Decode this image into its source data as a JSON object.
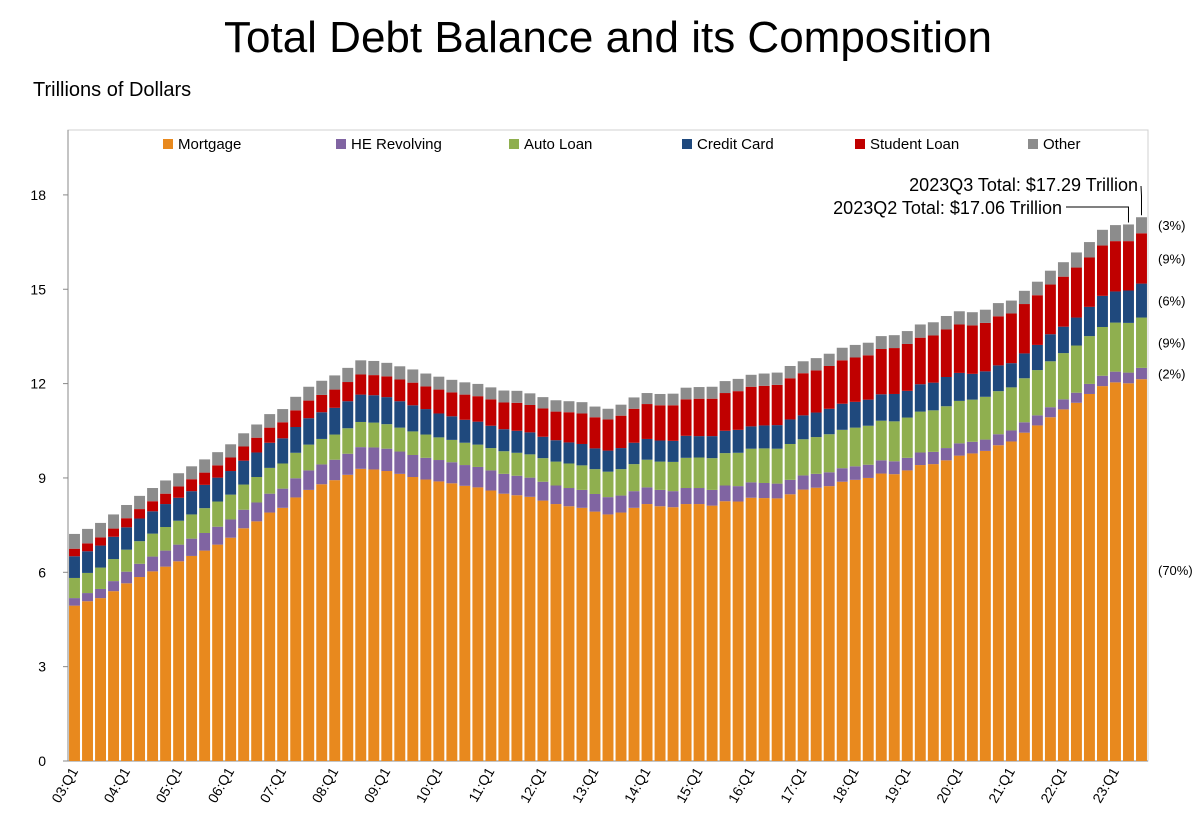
{
  "chart_data": {
    "type": "stacked_bar",
    "title": "Total Debt Balance and its Composition",
    "y_label": "Trillions of Dollars",
    "ylim": [
      0,
      20
    ],
    "yticks": [
      0,
      3,
      6,
      9,
      12,
      15,
      18
    ],
    "annotations": [
      "2023Q3 Total: $17.29 Trillion",
      "2023Q2 Total: $17.06 Trillion"
    ],
    "categories": [
      "03:Q1",
      null,
      null,
      null,
      "04:Q1",
      null,
      null,
      null,
      "05:Q1",
      null,
      null,
      null,
      "06:Q1",
      null,
      null,
      null,
      "07:Q1",
      null,
      null,
      null,
      "08:Q1",
      null,
      null,
      null,
      "09:Q1",
      null,
      null,
      null,
      "10:Q1",
      null,
      null,
      null,
      "11:Q1",
      null,
      null,
      null,
      "12:Q1",
      null,
      null,
      null,
      "13:Q1",
      null,
      null,
      null,
      "14:Q1",
      null,
      null,
      null,
      "15:Q1",
      null,
      null,
      null,
      "16:Q1",
      null,
      null,
      null,
      "17:Q1",
      null,
      null,
      null,
      "18:Q1",
      null,
      null,
      null,
      "19:Q1",
      null,
      null,
      null,
      "20:Q1",
      null,
      null,
      null,
      "21:Q1",
      null,
      null,
      null,
      "22:Q1",
      null,
      null,
      null,
      "23:Q1",
      null,
      null
    ],
    "series": [
      {
        "name": "Mortgage",
        "color": "#e8891e",
        "share_label": "(70%)",
        "values": [
          4.94,
          5.08,
          5.18,
          5.4,
          5.65,
          5.85,
          6.03,
          6.18,
          6.35,
          6.52,
          6.69,
          6.88,
          7.1,
          7.4,
          7.62,
          7.9,
          8.05,
          8.38,
          8.62,
          8.8,
          8.93,
          9.1,
          9.29,
          9.27,
          9.22,
          9.13,
          9.03,
          8.95,
          8.89,
          8.83,
          8.75,
          8.7,
          8.6,
          8.5,
          8.45,
          8.4,
          8.28,
          8.17,
          8.1,
          8.05,
          7.93,
          7.84,
          7.9,
          8.05,
          8.17,
          8.1,
          8.07,
          8.17,
          8.17,
          8.12,
          8.26,
          8.25,
          8.37,
          8.36,
          8.35,
          8.48,
          8.63,
          8.69,
          8.74,
          8.88,
          8.94,
          9.0,
          9.14,
          9.12,
          9.24,
          9.41,
          9.44,
          9.56,
          9.71,
          9.78,
          9.86,
          10.04,
          10.16,
          10.44,
          10.67,
          10.93,
          11.18,
          11.39,
          11.67,
          11.92,
          12.04,
          12.01,
          12.14
        ]
      },
      {
        "name": "HE Revolving",
        "color": "#8064a2",
        "share_label": "(2%)",
        "values": [
          0.24,
          0.26,
          0.29,
          0.32,
          0.37,
          0.42,
          0.47,
          0.51,
          0.53,
          0.55,
          0.56,
          0.57,
          0.58,
          0.59,
          0.6,
          0.6,
          0.61,
          0.61,
          0.62,
          0.63,
          0.65,
          0.67,
          0.69,
          0.7,
          0.71,
          0.71,
          0.7,
          0.69,
          0.68,
          0.67,
          0.66,
          0.65,
          0.64,
          0.63,
          0.62,
          0.61,
          0.6,
          0.59,
          0.58,
          0.57,
          0.56,
          0.55,
          0.54,
          0.53,
          0.53,
          0.52,
          0.51,
          0.51,
          0.51,
          0.5,
          0.5,
          0.49,
          0.49,
          0.48,
          0.47,
          0.46,
          0.45,
          0.44,
          0.44,
          0.43,
          0.43,
          0.42,
          0.42,
          0.41,
          0.4,
          0.4,
          0.39,
          0.39,
          0.39,
          0.37,
          0.36,
          0.35,
          0.35,
          0.33,
          0.32,
          0.32,
          0.32,
          0.32,
          0.32,
          0.33,
          0.34,
          0.34,
          0.36
        ]
      },
      {
        "name": "Auto Loan",
        "color": "#8faf4f",
        "share_label": "(9%)",
        "values": [
          0.64,
          0.64,
          0.68,
          0.7,
          0.7,
          0.72,
          0.73,
          0.75,
          0.76,
          0.77,
          0.79,
          0.8,
          0.79,
          0.8,
          0.81,
          0.82,
          0.8,
          0.81,
          0.82,
          0.81,
          0.8,
          0.81,
          0.8,
          0.79,
          0.78,
          0.76,
          0.75,
          0.74,
          0.72,
          0.71,
          0.71,
          0.71,
          0.71,
          0.72,
          0.73,
          0.74,
          0.75,
          0.76,
          0.78,
          0.78,
          0.79,
          0.81,
          0.84,
          0.86,
          0.88,
          0.9,
          0.93,
          0.96,
          0.97,
          1.01,
          1.03,
          1.06,
          1.07,
          1.1,
          1.11,
          1.14,
          1.15,
          1.17,
          1.21,
          1.22,
          1.23,
          1.24,
          1.26,
          1.27,
          1.28,
          1.3,
          1.32,
          1.33,
          1.35,
          1.34,
          1.36,
          1.37,
          1.37,
          1.4,
          1.44,
          1.46,
          1.47,
          1.5,
          1.52,
          1.55,
          1.56,
          1.58,
          1.6
        ]
      },
      {
        "name": "Credit Card",
        "color": "#1f497d",
        "share_label": "(6%)",
        "values": [
          0.69,
          0.69,
          0.7,
          0.71,
          0.71,
          0.72,
          0.71,
          0.73,
          0.73,
          0.74,
          0.74,
          0.76,
          0.75,
          0.76,
          0.78,
          0.8,
          0.8,
          0.82,
          0.84,
          0.85,
          0.85,
          0.86,
          0.87,
          0.87,
          0.86,
          0.84,
          0.83,
          0.81,
          0.76,
          0.75,
          0.73,
          0.73,
          0.71,
          0.7,
          0.7,
          0.7,
          0.68,
          0.68,
          0.67,
          0.68,
          0.66,
          0.67,
          0.67,
          0.68,
          0.66,
          0.67,
          0.67,
          0.7,
          0.68,
          0.7,
          0.71,
          0.73,
          0.71,
          0.73,
          0.75,
          0.78,
          0.76,
          0.78,
          0.81,
          0.83,
          0.82,
          0.83,
          0.84,
          0.87,
          0.85,
          0.87,
          0.88,
          0.93,
          0.89,
          0.82,
          0.81,
          0.82,
          0.77,
          0.79,
          0.8,
          0.86,
          0.84,
          0.89,
          0.93,
          0.99,
          0.99,
          1.03,
          1.08
        ]
      },
      {
        "name": "Student Loan",
        "color": "#c00000",
        "share_label": "(9%)",
        "values": [
          0.24,
          0.25,
          0.26,
          0.26,
          0.29,
          0.3,
          0.32,
          0.33,
          0.36,
          0.38,
          0.39,
          0.39,
          0.43,
          0.45,
          0.47,
          0.48,
          0.51,
          0.53,
          0.56,
          0.55,
          0.58,
          0.61,
          0.64,
          0.64,
          0.66,
          0.69,
          0.72,
          0.72,
          0.76,
          0.76,
          0.8,
          0.81,
          0.84,
          0.85,
          0.89,
          0.87,
          0.9,
          0.91,
          0.96,
          0.97,
          0.99,
          0.99,
          1.03,
          1.08,
          1.11,
          1.12,
          1.13,
          1.16,
          1.19,
          1.19,
          1.2,
          1.23,
          1.26,
          1.26,
          1.28,
          1.31,
          1.34,
          1.34,
          1.36,
          1.38,
          1.41,
          1.41,
          1.44,
          1.46,
          1.49,
          1.48,
          1.5,
          1.51,
          1.54,
          1.54,
          1.54,
          1.56,
          1.58,
          1.57,
          1.58,
          1.58,
          1.59,
          1.59,
          1.57,
          1.6,
          1.6,
          1.57,
          1.6
        ]
      },
      {
        "name": "Other",
        "color": "#8c8c8c",
        "share_label": "(3%)",
        "values": [
          0.47,
          0.46,
          0.46,
          0.45,
          0.42,
          0.42,
          0.42,
          0.42,
          0.42,
          0.41,
          0.42,
          0.42,
          0.42,
          0.42,
          0.42,
          0.43,
          0.42,
          0.43,
          0.44,
          0.45,
          0.45,
          0.45,
          0.45,
          0.45,
          0.43,
          0.42,
          0.42,
          0.41,
          0.41,
          0.4,
          0.39,
          0.39,
          0.38,
          0.38,
          0.38,
          0.37,
          0.36,
          0.36,
          0.35,
          0.36,
          0.34,
          0.34,
          0.35,
          0.36,
          0.35,
          0.36,
          0.37,
          0.37,
          0.37,
          0.38,
          0.38,
          0.39,
          0.38,
          0.39,
          0.39,
          0.39,
          0.38,
          0.39,
          0.39,
          0.4,
          0.4,
          0.4,
          0.41,
          0.41,
          0.41,
          0.42,
          0.42,
          0.43,
          0.42,
          0.42,
          0.42,
          0.42,
          0.41,
          0.42,
          0.43,
          0.44,
          0.46,
          0.48,
          0.49,
          0.5,
          0.51,
          0.53,
          0.51
        ]
      }
    ]
  }
}
